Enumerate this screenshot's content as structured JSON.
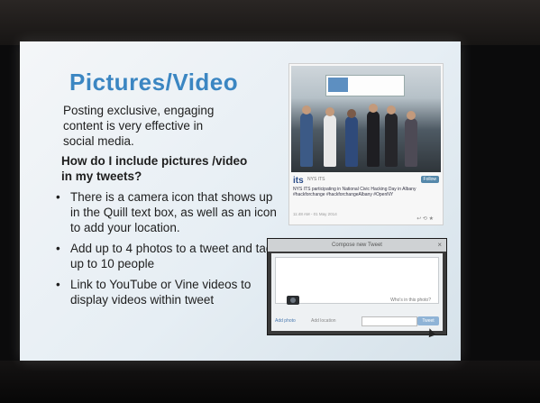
{
  "slide": {
    "title": "Pictures/Video",
    "intro": "Posting exclusive, engaging content is very effective in social media.",
    "question": "How do I include pictures /video in my tweets?",
    "bullets": [
      "There is a camera icon that shows up in the Quill text box, as well as an icon to add your location.",
      "Add up to 4 photos to a tweet and tag up to 10 people",
      "Link to YouTube or Vine videos to display videos within tweet"
    ],
    "bullet_glyph": "•"
  },
  "tweet": {
    "logo": "its",
    "handle": "NYS ITS",
    "follow_label": "Follow",
    "text": "NYS ITS participating in National Civic Hacking Day in Albany #hackforchange #hackforchangeAlbany #OpenNY",
    "date": "11:48 AM - 01 May 2014",
    "actions": "↩ ⟲ ★"
  },
  "compose": {
    "title": "Compose new Tweet",
    "close_glyph": "×",
    "location_text": "Who's in this photo?",
    "photo_label": "Add photo",
    "location_label": "Add location",
    "tweet_button": "Tweet"
  },
  "colors": {
    "title": "#3b86c2",
    "text": "#1e1e1e",
    "screen_bg": "#eef3f7"
  }
}
